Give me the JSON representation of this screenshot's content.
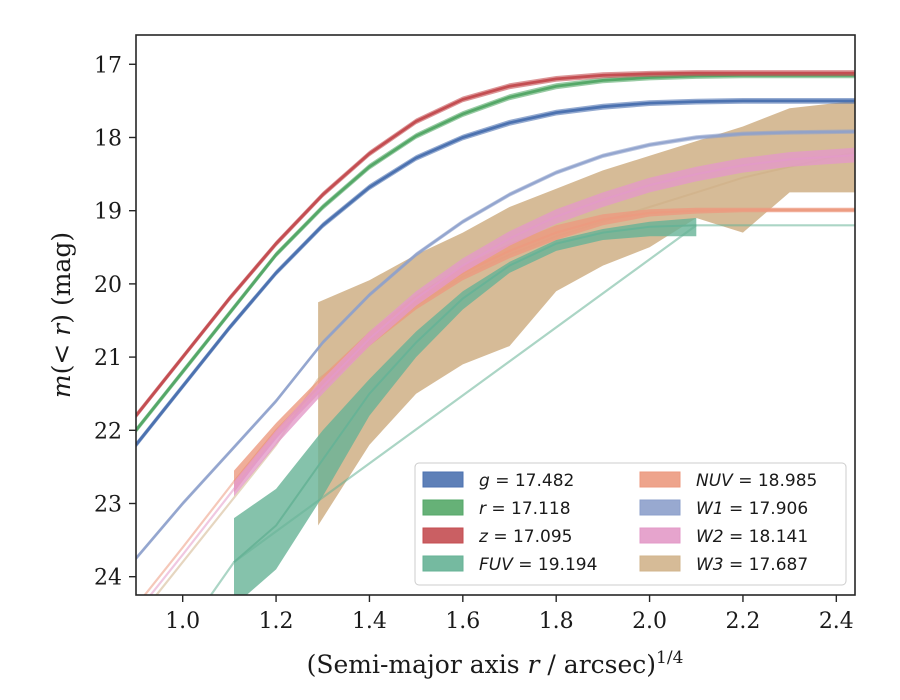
{
  "chart_data": {
    "type": "line",
    "xlabel": "(Semi-major axis r / arcsec)^1/4",
    "xlabel_parts": {
      "main": "(Semi-major axis ",
      "var": "r",
      "rest": " / arcsec)",
      "sup": "1/4"
    },
    "ylabel": "m(< r) (mag)",
    "ylabel_parts": {
      "var": "m",
      "mid": "(< ",
      "var2": "r",
      "rest": ") (mag)"
    },
    "xlim": [
      0.9,
      2.44
    ],
    "ylim": [
      24.25,
      16.6
    ],
    "y_inverted": true,
    "x_ticks": [
      1.0,
      1.2,
      1.4,
      1.6,
      1.8,
      2.0,
      2.2,
      2.4
    ],
    "x_tick_labels": [
      "1.0",
      "1.2",
      "1.4",
      "1.6",
      "1.8",
      "2.0",
      "2.2",
      "2.4"
    ],
    "y_ticks": [
      17,
      18,
      19,
      20,
      21,
      22,
      23,
      24
    ],
    "y_tick_labels": [
      "17",
      "18",
      "19",
      "20",
      "21",
      "22",
      "23",
      "24"
    ],
    "grid": false,
    "legend_position": "lower-right",
    "legend_columns": 2,
    "series": [
      {
        "name": "g = 17.482",
        "band": "g",
        "value": "17.482",
        "color": "#4c72b0",
        "x": [
          0.9,
          1.0,
          1.1,
          1.2,
          1.3,
          1.4,
          1.5,
          1.6,
          1.7,
          1.8,
          1.9,
          2.0,
          2.1,
          2.2,
          2.3,
          2.44
        ],
        "y": [
          22.2,
          21.4,
          20.6,
          19.85,
          19.2,
          18.68,
          18.28,
          18.0,
          17.8,
          17.66,
          17.58,
          17.53,
          17.51,
          17.5,
          17.5,
          17.5
        ],
        "halfwidth": 0.04
      },
      {
        "name": "r = 17.118",
        "band": "r",
        "value": "17.118",
        "color": "#55a868",
        "x": [
          0.9,
          1.0,
          1.1,
          1.2,
          1.3,
          1.4,
          1.5,
          1.6,
          1.7,
          1.8,
          1.9,
          2.0,
          2.1,
          2.2,
          2.3,
          2.44
        ],
        "y": [
          22.0,
          21.2,
          20.4,
          19.6,
          18.95,
          18.4,
          17.98,
          17.68,
          17.45,
          17.3,
          17.22,
          17.18,
          17.16,
          17.15,
          17.15,
          17.15
        ],
        "halfwidth": 0.04
      },
      {
        "name": "z = 17.095",
        "band": "z",
        "value": "17.095",
        "color": "#c44e52",
        "x": [
          0.9,
          1.0,
          1.1,
          1.2,
          1.3,
          1.4,
          1.5,
          1.6,
          1.7,
          1.8,
          1.9,
          2.0,
          2.1,
          2.2,
          2.3,
          2.44
        ],
        "y": [
          21.8,
          21.0,
          20.2,
          19.45,
          18.78,
          18.22,
          17.78,
          17.48,
          17.3,
          17.2,
          17.15,
          17.13,
          17.12,
          17.12,
          17.12,
          17.12
        ],
        "halfwidth": 0.04
      },
      {
        "name": "FUV = 19.194",
        "band": "FUV",
        "value": "19.194",
        "color": "#66b396",
        "x": [
          1.11,
          1.2,
          1.3,
          1.4,
          1.5,
          1.6,
          1.7,
          1.8,
          1.9,
          2.0,
          2.1
        ],
        "y": [
          23.8,
          23.3,
          22.4,
          21.5,
          20.8,
          20.2,
          19.75,
          19.45,
          19.3,
          19.22,
          19.2
        ],
        "y_low": [
          23.2,
          22.8,
          22.0,
          21.3,
          20.65,
          20.1,
          19.7,
          19.4,
          19.25,
          19.15,
          19.1
        ],
        "y_high": [
          24.4,
          23.9,
          22.9,
          21.8,
          21.0,
          20.35,
          19.85,
          19.55,
          19.4,
          19.35,
          19.35
        ],
        "ext_x": [
          0.9,
          1.0,
          1.11,
          2.1,
          2.2,
          2.3,
          2.44
        ],
        "ext_y": [
          25.6,
          24.8,
          23.8,
          19.2,
          19.2,
          19.2,
          19.2
        ]
      },
      {
        "name": "NUV = 18.985",
        "band": "NUV",
        "value": "18.985",
        "color": "#ec9a7f",
        "x": [
          1.11,
          1.2,
          1.3,
          1.4,
          1.5,
          1.6,
          1.7,
          1.8,
          1.9,
          2.0,
          2.1,
          2.2,
          2.3,
          2.44
        ],
        "y": [
          22.7,
          22.0,
          21.35,
          20.75,
          20.25,
          19.85,
          19.55,
          19.3,
          19.12,
          19.03,
          19.0,
          18.99,
          18.99,
          18.99
        ],
        "y_low": [
          22.55,
          21.9,
          21.25,
          20.65,
          20.15,
          19.75,
          19.45,
          19.2,
          19.05,
          18.98,
          18.96,
          18.96,
          18.96,
          18.96
        ],
        "y_high": [
          22.85,
          22.1,
          21.45,
          20.85,
          20.35,
          19.95,
          19.65,
          19.4,
          19.2,
          19.08,
          19.04,
          19.02,
          19.02,
          19.02
        ],
        "ext_x": [
          0.9,
          1.0,
          1.11
        ],
        "ext_y": [
          24.4,
          23.6,
          22.7
        ]
      },
      {
        "name": "W1 = 17.906",
        "band": "W1",
        "value": "17.906",
        "color": "#8da0cb",
        "x": [
          0.9,
          1.0,
          1.1,
          1.2,
          1.3,
          1.4,
          1.5,
          1.6,
          1.7,
          1.8,
          1.9,
          2.0,
          2.1,
          2.2,
          2.3,
          2.44
        ],
        "y": [
          23.75,
          23.0,
          22.3,
          21.6,
          20.8,
          20.15,
          19.6,
          19.15,
          18.78,
          18.48,
          18.25,
          18.1,
          18.0,
          17.95,
          17.93,
          17.92
        ],
        "halfwidth": 0.03,
        "faint_until_x": 1.3
      },
      {
        "name": "W2 = 18.141",
        "band": "W2",
        "value": "18.141",
        "color": "#e39ac8",
        "x": [
          1.11,
          1.2,
          1.3,
          1.4,
          1.5,
          1.6,
          1.7,
          1.8,
          1.9,
          2.0,
          2.1,
          2.2,
          2.3,
          2.44
        ],
        "y": [
          22.8,
          22.1,
          21.4,
          20.75,
          20.2,
          19.75,
          19.38,
          19.08,
          18.85,
          18.65,
          18.5,
          18.38,
          18.3,
          18.24
        ],
        "y_low": [
          22.7,
          22.0,
          21.3,
          20.65,
          20.1,
          19.65,
          19.28,
          18.98,
          18.75,
          18.55,
          18.4,
          18.28,
          18.2,
          18.14
        ],
        "y_high": [
          22.9,
          22.2,
          21.5,
          20.85,
          20.3,
          19.85,
          19.48,
          19.18,
          18.95,
          18.75,
          18.6,
          18.48,
          18.4,
          18.34
        ],
        "ext_x": [
          0.9,
          1.0,
          1.11
        ],
        "ext_y": [
          24.5,
          23.7,
          22.8
        ]
      },
      {
        "name": "W3 = 17.687",
        "band": "W3",
        "value": "17.687",
        "color": "#d2b48c",
        "x": [
          1.29,
          1.4,
          1.5,
          1.6,
          1.7,
          1.8,
          1.9,
          2.0,
          2.1,
          2.2,
          2.3,
          2.44
        ],
        "y": [
          21.3,
          20.8,
          20.3,
          19.9,
          19.6,
          19.35,
          19.15,
          18.95,
          18.75,
          18.55,
          18.4,
          18.2
        ],
        "y_low": [
          20.25,
          19.95,
          19.6,
          19.3,
          18.95,
          18.7,
          18.45,
          18.25,
          18.05,
          17.85,
          17.6,
          17.5
        ],
        "y_high": [
          23.3,
          22.2,
          21.5,
          21.1,
          20.85,
          20.1,
          19.75,
          19.5,
          19.1,
          19.3,
          18.75,
          18.75
        ],
        "ext_x": [
          0.9,
          1.0,
          1.1,
          1.2,
          1.29
        ],
        "ext_y": [
          24.6,
          23.8,
          23.0,
          22.2,
          21.3
        ]
      }
    ]
  }
}
